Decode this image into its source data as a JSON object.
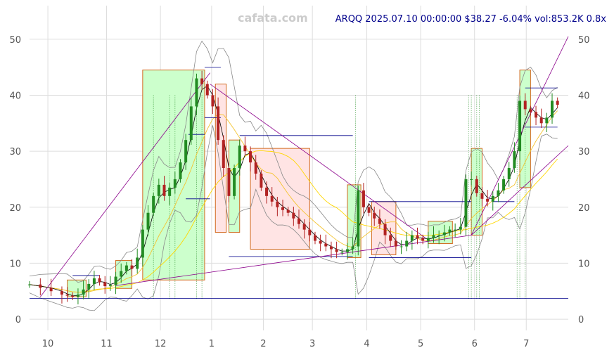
{
  "watermark": "cafata.com",
  "header": "ARQQ 2025.07.10 00:00:00 $38.27 -6.04% vol:853.2K 0.8x",
  "chart_data": {
    "type": "candlestick",
    "ylim": [
      -2,
      56
    ],
    "xlim": [
      0,
      100
    ],
    "y_ticks": [
      0,
      10,
      20,
      30,
      40,
      50
    ],
    "x_ticks": [
      {
        "label": "10",
        "x": 3.4
      },
      {
        "label": "11",
        "x": 14.3
      },
      {
        "label": "12",
        "x": 24.3
      },
      {
        "label": "1",
        "x": 33.8
      },
      {
        "label": "2",
        "x": 43.4
      },
      {
        "label": "3",
        "x": 52.5
      },
      {
        "label": "4",
        "x": 62.6
      },
      {
        "label": "5",
        "x": 72.6
      },
      {
        "label": "6",
        "x": 82.6
      },
      {
        "label": "7",
        "x": 92.2
      }
    ],
    "colors": {
      "up": "#228b22",
      "down": "#b22222",
      "grid": "#dddddd",
      "box_up": "#ccffcc",
      "box_down": "#ffe4e4",
      "box_edge": "#d2691e",
      "hline": "#00008b",
      "trend": "#8b008b",
      "ma_short": "#000000",
      "ma_mid": "#f4c430",
      "ma_long": "#ffd700",
      "band": "#888888"
    },
    "close_path": [
      [
        0,
        6.2
      ],
      [
        2,
        5.6
      ],
      [
        4,
        5.0
      ],
      [
        6,
        4.4
      ],
      [
        7,
        4.2
      ],
      [
        8,
        4.0
      ],
      [
        9,
        4.4
      ],
      [
        10,
        5.3
      ],
      [
        11,
        6.3
      ],
      [
        12,
        7.3
      ],
      [
        13,
        6.6
      ],
      [
        14,
        5.9
      ],
      [
        15,
        6.1
      ],
      [
        16,
        7.6
      ],
      [
        17,
        8.6
      ],
      [
        18,
        9.6
      ],
      [
        19,
        9.0
      ],
      [
        20,
        11.0
      ],
      [
        21,
        16.0
      ],
      [
        22,
        19.0
      ],
      [
        23,
        22.0
      ],
      [
        24,
        24.0
      ],
      [
        25,
        22.0
      ],
      [
        26,
        23.5
      ],
      [
        27,
        25.0
      ],
      [
        28,
        28.0
      ],
      [
        29,
        32.0
      ],
      [
        30,
        38.0
      ],
      [
        31,
        43.0
      ],
      [
        32,
        42.0
      ],
      [
        33,
        40.0
      ],
      [
        34,
        38.0
      ],
      [
        35,
        32.0
      ],
      [
        36,
        27.0
      ],
      [
        37,
        22.0
      ],
      [
        38,
        27.0
      ],
      [
        39,
        31.0
      ],
      [
        40,
        30.0
      ],
      [
        41,
        28.0
      ],
      [
        42,
        26.0
      ],
      [
        43,
        23.5
      ],
      [
        44,
        22.0
      ],
      [
        45,
        21.0
      ],
      [
        46,
        20.0
      ],
      [
        47,
        19.5
      ],
      [
        48,
        19.0
      ],
      [
        49,
        18.0
      ],
      [
        50,
        17.0
      ],
      [
        51,
        16.0
      ],
      [
        52,
        15.0
      ],
      [
        53,
        14.0
      ],
      [
        54,
        13.5
      ],
      [
        55,
        13.0
      ],
      [
        56,
        12.5
      ],
      [
        57,
        12.0
      ],
      [
        58,
        12.0
      ],
      [
        59,
        12.5
      ],
      [
        60,
        13.0
      ],
      [
        61,
        23.0
      ],
      [
        62,
        20.0
      ],
      [
        63,
        19.0
      ],
      [
        64,
        18.0
      ],
      [
        65,
        17.0
      ],
      [
        66,
        15.0
      ],
      [
        67,
        14.0
      ],
      [
        68,
        13.0
      ],
      [
        69,
        13.0
      ],
      [
        70,
        14.0
      ],
      [
        71,
        15.0
      ],
      [
        72,
        14.5
      ],
      [
        73,
        14.0
      ],
      [
        74,
        14.5
      ],
      [
        75,
        15.0
      ],
      [
        76,
        15.0
      ],
      [
        77,
        15.5
      ],
      [
        78,
        16.0
      ],
      [
        79,
        16.0
      ],
      [
        80,
        16.5
      ],
      [
        81,
        25.0
      ],
      [
        82,
        25.0
      ],
      [
        83,
        22.5
      ],
      [
        84,
        21.5
      ],
      [
        85,
        21.0
      ],
      [
        86,
        22.0
      ],
      [
        87,
        23.0
      ],
      [
        88,
        25.0
      ],
      [
        89,
        27.0
      ],
      [
        90,
        30.0
      ],
      [
        91,
        39.0
      ],
      [
        92,
        37.5
      ],
      [
        93,
        37.0
      ],
      [
        94,
        36.0
      ],
      [
        95,
        35.0
      ],
      [
        96,
        36.0
      ],
      [
        97,
        39.0
      ],
      [
        98,
        38.3
      ]
    ],
    "boxes": [
      {
        "x0": 7.0,
        "x1": 10.5,
        "y0": 4.0,
        "y1": 7.0,
        "kind": "up"
      },
      {
        "x0": 16.0,
        "x1": 19.0,
        "y0": 5.5,
        "y1": 10.5,
        "kind": "up"
      },
      {
        "x0": 21.0,
        "x1": 32.5,
        "y0": 7.0,
        "y1": 44.5,
        "kind": "up"
      },
      {
        "x0": 34.5,
        "x1": 36.5,
        "y0": 15.5,
        "y1": 42.0,
        "kind": "down"
      },
      {
        "x0": 37.0,
        "x1": 39.0,
        "y0": 15.5,
        "y1": 32.0,
        "kind": "up"
      },
      {
        "x0": 41.0,
        "x1": 52.0,
        "y0": 12.5,
        "y1": 30.5,
        "kind": "down"
      },
      {
        "x0": 59.0,
        "x1": 61.5,
        "y0": 11.0,
        "y1": 24.0,
        "kind": "up"
      },
      {
        "x0": 63.5,
        "x1": 68.0,
        "y0": 11.5,
        "y1": 21.0,
        "kind": "down"
      },
      {
        "x0": 74.0,
        "x1": 78.5,
        "y0": 13.5,
        "y1": 17.5,
        "kind": "up"
      },
      {
        "x0": 82.0,
        "x1": 84.0,
        "y0": 15.0,
        "y1": 30.5,
        "kind": "up"
      },
      {
        "x0": 91.0,
        "x1": 93.0,
        "y0": 23.5,
        "y1": 44.5,
        "kind": "up"
      }
    ],
    "hlines": [
      {
        "x0": 0,
        "x1": 100,
        "y": 3.7
      },
      {
        "x0": 37,
        "x1": 60,
        "y": 11.2
      },
      {
        "x0": 63,
        "x1": 82,
        "y": 11.0
      },
      {
        "x0": 63,
        "x1": 82,
        "y": 21.0
      },
      {
        "x0": 39,
        "x1": 60,
        "y": 32.8
      },
      {
        "x0": 29.5,
        "x1": 32.5,
        "y": 33.0
      },
      {
        "x0": 29.0,
        "x1": 33.5,
        "y": 21.5
      },
      {
        "x0": 86.0,
        "x1": 90.0,
        "y": 21.0
      },
      {
        "x0": 92.0,
        "x1": 98.0,
        "y": 41.3
      },
      {
        "x0": 92.0,
        "x1": 98.0,
        "y": 34.3
      },
      {
        "x0": 32.5,
        "x1": 35.5,
        "y": 45.0
      },
      {
        "x0": 32.5,
        "x1": 35.5,
        "y": 36.0
      },
      {
        "x0": 8.0,
        "x1": 13.0,
        "y": 7.8
      }
    ],
    "trendlines": [
      {
        "x0": 2,
        "y0": 4.0,
        "x1": 33.5,
        "y1": 44.0
      },
      {
        "x0": 33.5,
        "y0": 42.0,
        "x1": 73.5,
        "y1": 14.5
      },
      {
        "x0": 16,
        "y0": 6.0,
        "x1": 82,
        "y1": 15.0
      },
      {
        "x0": 82,
        "y0": 15.0,
        "x1": 100,
        "y1": 50.5
      },
      {
        "x0": 82,
        "y0": 15.0,
        "x1": 100,
        "y1": 31.0
      }
    ],
    "vlines": [
      23,
      26,
      27,
      31,
      32,
      60.5,
      81.5,
      82,
      83,
      83.5,
      90.5,
      91,
      92
    ]
  }
}
